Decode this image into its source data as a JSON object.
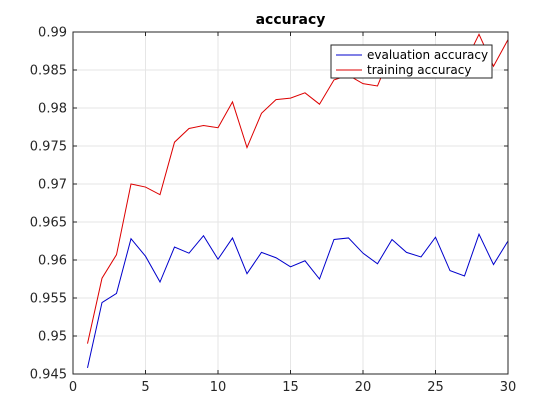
{
  "chart_data": {
    "type": "line",
    "title": "accuracy",
    "xlabel": "",
    "ylabel": "",
    "xlim": [
      0,
      30
    ],
    "ylim": [
      0.945,
      0.99
    ],
    "x_ticks": [
      0,
      5,
      10,
      15,
      20,
      25,
      30
    ],
    "y_ticks": [
      0.945,
      0.95,
      0.955,
      0.96,
      0.965,
      0.97,
      0.975,
      0.98,
      0.985,
      0.99
    ],
    "x_tick_labels": [
      "0",
      "5",
      "10",
      "15",
      "20",
      "25",
      "30"
    ],
    "y_tick_labels": [
      "0.945",
      "0.95",
      "0.955",
      "0.96",
      "0.965",
      "0.97",
      "0.975",
      "0.98",
      "0.985",
      "0.99"
    ],
    "grid": true,
    "legend_position": "top-right",
    "x": [
      1,
      2,
      3,
      4,
      5,
      6,
      7,
      8,
      9,
      10,
      11,
      12,
      13,
      14,
      15,
      16,
      17,
      18,
      19,
      20,
      21,
      22,
      23,
      24,
      25,
      26,
      27,
      28,
      29,
      30
    ],
    "series": [
      {
        "name": "evaluation accuracy",
        "color": "#0000cc",
        "values": [
          0.9458,
          0.9544,
          0.9556,
          0.9628,
          0.9605,
          0.9571,
          0.9617,
          0.9609,
          0.9632,
          0.9601,
          0.9629,
          0.9582,
          0.961,
          0.9603,
          0.9591,
          0.9599,
          0.9575,
          0.9627,
          0.9629,
          0.9609,
          0.9595,
          0.9627,
          0.961,
          0.9604,
          0.963,
          0.9586,
          0.9579,
          0.9634,
          0.9594,
          0.9625
        ]
      },
      {
        "name": "training accuracy",
        "color": "#dd0000",
        "values": [
          0.949,
          0.9576,
          0.9607,
          0.97,
          0.9696,
          0.9686,
          0.9755,
          0.9773,
          0.9777,
          0.9774,
          0.9808,
          0.9748,
          0.9793,
          0.9811,
          0.9813,
          0.982,
          0.9805,
          0.9837,
          0.9843,
          0.9832,
          0.9829,
          0.9875,
          0.986,
          0.9858,
          0.9869,
          0.9865,
          0.9858,
          0.9897,
          0.9855,
          0.989
        ]
      }
    ]
  }
}
